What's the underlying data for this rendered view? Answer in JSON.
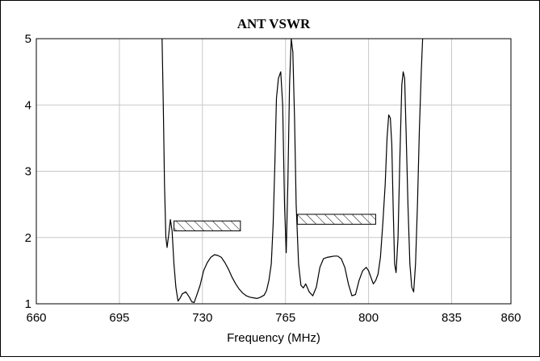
{
  "chart_data": {
    "type": "line",
    "title": "ANT VSWR",
    "xlabel": "Frequency (MHz)",
    "ylabel": "",
    "xlim": [
      660,
      860
    ],
    "ylim": [
      1,
      5
    ],
    "x_ticks": [
      660,
      695,
      730,
      765,
      800,
      835,
      860
    ],
    "y_ticks": [
      1,
      2,
      3,
      4,
      5
    ],
    "grid": true,
    "series": [
      {
        "x": [
          713.0,
          713.5,
          714.0,
          714.6,
          715.1,
          715.8,
          716.5,
          717.2,
          718.0,
          718.8,
          719.7,
          720.5,
          721.5,
          723.0,
          724.5,
          725.5,
          726.5,
          727.5,
          729.0,
          730.5,
          732.0,
          733.5,
          735.0,
          736.5,
          738.0,
          739.5,
          741.0,
          742.5,
          744.0,
          745.5,
          747.0,
          748.5,
          750.0,
          751.5,
          753.0,
          754.5,
          756.0,
          757.0,
          758.0,
          759.0,
          759.8,
          760.5,
          761.2,
          762.0,
          763.0,
          763.8,
          764.6,
          765.3,
          766.0,
          766.7,
          767.4,
          768.1,
          768.8,
          769.5,
          770.5,
          771.5,
          772.5,
          773.5,
          775.0,
          776.5,
          778.0,
          779.5,
          781.0,
          782.5,
          784.0,
          785.5,
          787.0,
          788.5,
          790.0,
          791.5,
          793.0,
          794.5,
          796.0,
          797.5,
          799.0,
          800.0,
          801.0,
          802.0,
          803.0,
          804.0,
          805.0,
          806.0,
          807.0,
          807.8,
          808.5,
          809.2,
          809.8,
          810.4,
          811.0,
          811.6,
          812.4,
          813.2,
          814.0,
          814.6,
          815.2,
          815.8,
          816.6,
          817.4,
          818.2,
          819.0,
          819.8,
          820.6,
          821.4,
          822.2,
          822.8
        ],
        "y": [
          5.0,
          4.0,
          2.8,
          2.0,
          1.85,
          2.05,
          2.27,
          2.1,
          1.6,
          1.25,
          1.04,
          1.08,
          1.15,
          1.18,
          1.1,
          1.03,
          1.02,
          1.12,
          1.28,
          1.5,
          1.62,
          1.7,
          1.74,
          1.73,
          1.7,
          1.62,
          1.52,
          1.4,
          1.3,
          1.22,
          1.16,
          1.12,
          1.1,
          1.09,
          1.08,
          1.1,
          1.13,
          1.2,
          1.35,
          1.6,
          2.2,
          3.1,
          4.1,
          4.4,
          4.5,
          4.0,
          2.5,
          1.77,
          2.8,
          4.3,
          5.0,
          4.8,
          3.8,
          2.5,
          1.6,
          1.28,
          1.24,
          1.3,
          1.18,
          1.12,
          1.25,
          1.55,
          1.68,
          1.7,
          1.71,
          1.72,
          1.72,
          1.68,
          1.55,
          1.3,
          1.12,
          1.14,
          1.35,
          1.5,
          1.55,
          1.5,
          1.4,
          1.3,
          1.35,
          1.45,
          1.7,
          2.2,
          2.8,
          3.5,
          3.85,
          3.8,
          3.4,
          2.4,
          1.6,
          1.47,
          2.0,
          3.2,
          4.3,
          4.5,
          4.4,
          3.6,
          2.5,
          1.6,
          1.25,
          1.18,
          1.6,
          2.5,
          3.6,
          4.5,
          5.0
        ]
      }
    ],
    "spec_regions": [
      {
        "x": [
          718,
          746
        ],
        "y": [
          2.1,
          2.25
        ]
      },
      {
        "x": [
          770,
          803
        ],
        "y": [
          2.2,
          2.35
        ]
      }
    ]
  }
}
